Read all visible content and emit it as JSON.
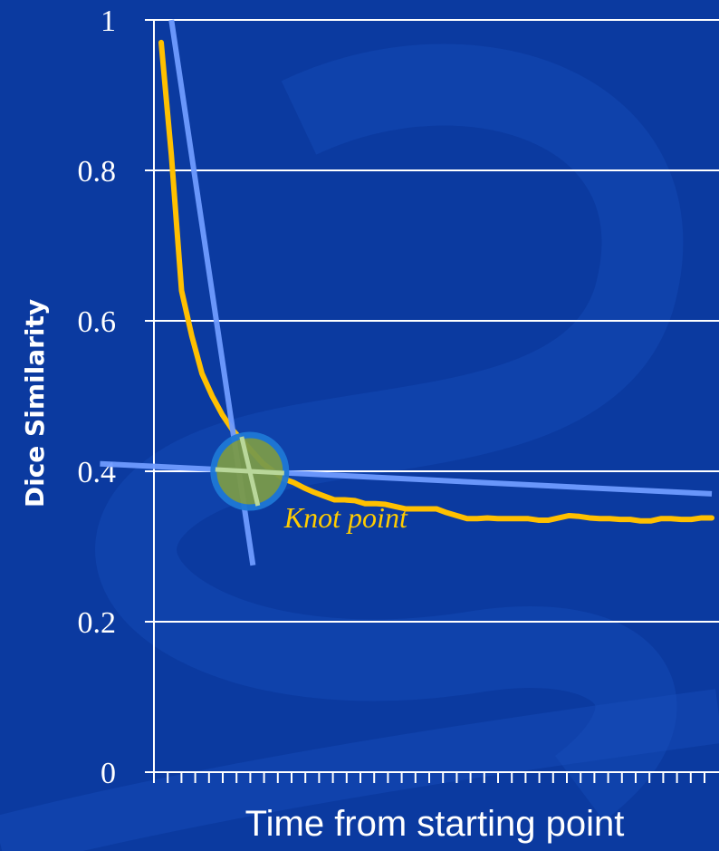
{
  "chart_data": {
    "type": "line",
    "xlabel": "Time from starting point",
    "ylabel": "Dice Similarity",
    "ylim": [
      0,
      1
    ],
    "y_ticks": [
      "0",
      "0.2",
      "0.4",
      "0.6",
      "0.8",
      "1"
    ],
    "grid": "horizontal",
    "series": [
      {
        "color": "#ffc000",
        "x": [
          0,
          1,
          2,
          3,
          4,
          5,
          6,
          7,
          8,
          9,
          10,
          11,
          12,
          13,
          14,
          15,
          16,
          17,
          18,
          19,
          20,
          21,
          22,
          23,
          24,
          25,
          26,
          27,
          28,
          29,
          30,
          31,
          32,
          33,
          34,
          35,
          36,
          37,
          38,
          39,
          40,
          41,
          42,
          43,
          44,
          45,
          46,
          47,
          48,
          49,
          50,
          51,
          52,
          53,
          54
        ],
        "values": [
          0.97,
          0.82,
          0.64,
          0.58,
          0.53,
          0.5,
          0.475,
          0.455,
          0.44,
          0.425,
          0.41,
          0.4,
          0.39,
          0.385,
          0.378,
          0.372,
          0.367,
          0.362,
          0.362,
          0.361,
          0.357,
          0.357,
          0.356,
          0.353,
          0.35,
          0.35,
          0.35,
          0.35,
          0.345,
          0.341,
          0.337,
          0.337,
          0.338,
          0.337,
          0.337,
          0.337,
          0.337,
          0.335,
          0.335,
          0.338,
          0.341,
          0.34,
          0.338,
          0.337,
          0.337,
          0.336,
          0.336,
          0.334,
          0.334,
          0.337,
          0.337,
          0.336,
          0.336,
          0.338,
          0.338
        ]
      }
    ],
    "fit_lines": [
      {
        "color": "#6f9bff",
        "from": [
          1,
          1.0
        ],
        "to": [
          9,
          0.275
        ]
      },
      {
        "color": "#6f9bff",
        "from": [
          -6,
          0.41
        ],
        "to": [
          54,
          0.37
        ]
      }
    ],
    "annotations": [
      {
        "text": "Knot point",
        "x": 7,
        "y": 0.4
      }
    ],
    "marker_color": "#7a9a4a"
  }
}
